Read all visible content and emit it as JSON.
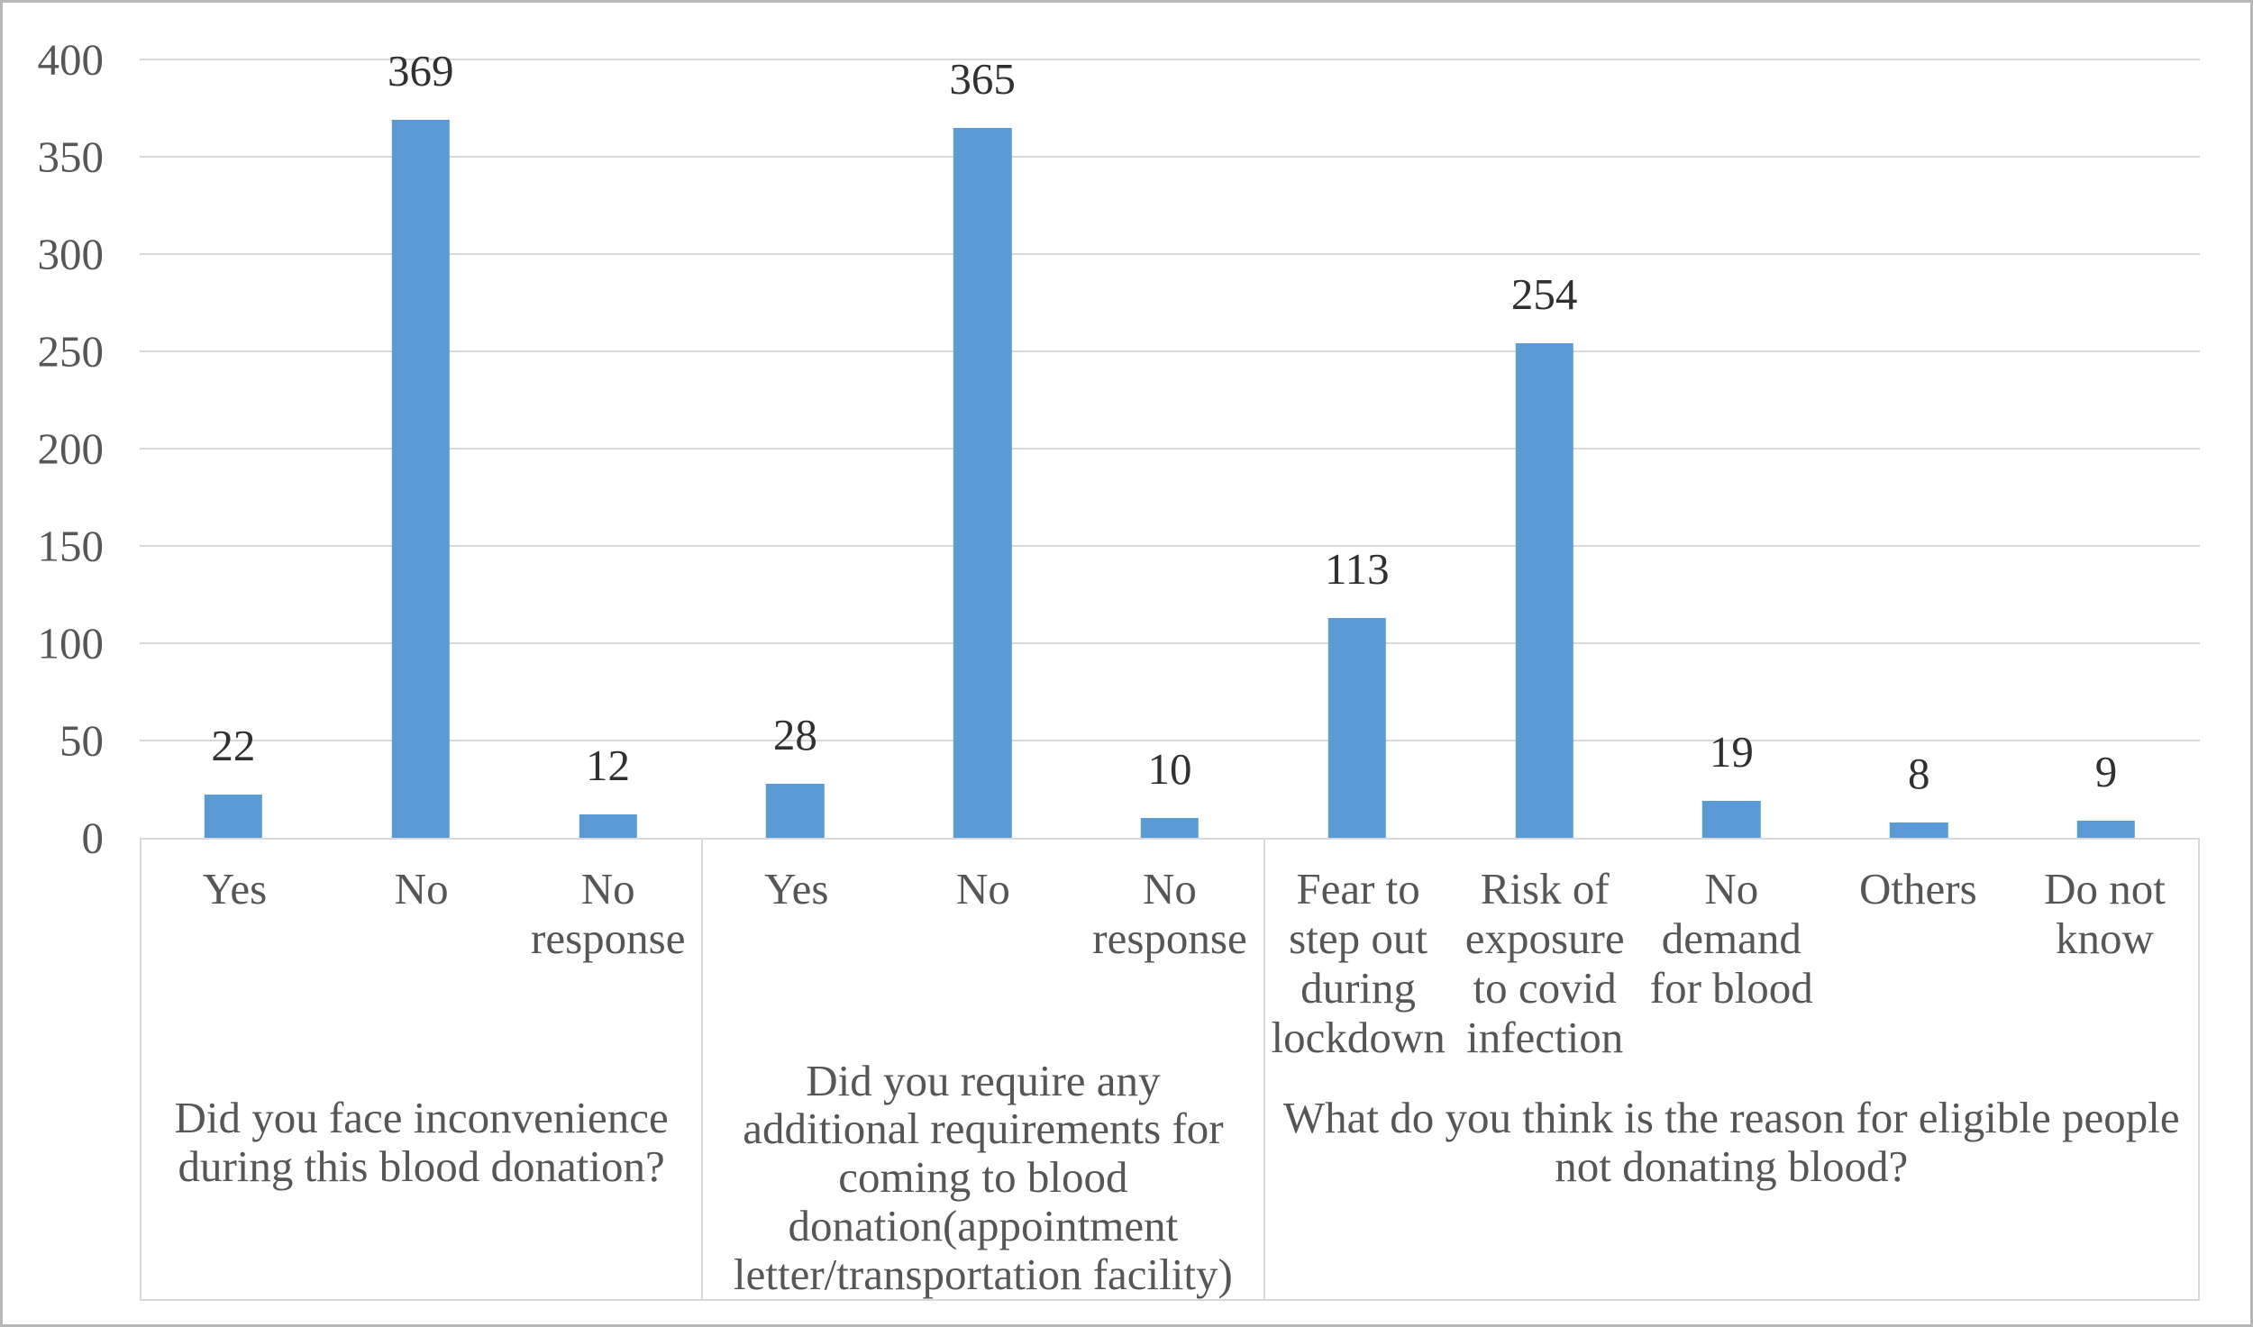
{
  "figure": {
    "background_color": "#ffffff",
    "frame_border_color": "#b7b7b7"
  },
  "chart_data": {
    "type": "bar",
    "title": "",
    "xlabel": "",
    "ylabel": "",
    "ylim": [
      0,
      400
    ],
    "ytick_step": 50,
    "yticks": [
      400,
      350,
      300,
      250,
      200,
      150,
      100,
      50,
      0
    ],
    "grid": true,
    "legend": false,
    "bar_color": "#5b9bd5",
    "gridline_color": "#d9d9d9",
    "axis_table_border_color": "#d9d9d9",
    "tick_text_color": "#565656",
    "value_label_color": "#303030",
    "groups": [
      {
        "question": "Did you face inconvenience during this blood donation?",
        "categories": [
          "Yes",
          "No",
          "No response"
        ],
        "values": [
          22,
          369,
          12
        ]
      },
      {
        "question": "Did you require any additional requirements for coming to blood donation(appointment letter/transportation facility)",
        "categories": [
          "Yes",
          "No",
          "No response"
        ],
        "values": [
          28,
          365,
          10
        ]
      },
      {
        "question": "What do you think is the reason for eligible people not donating blood?",
        "categories": [
          "Fear to step out during lockdown",
          "Risk of exposure to covid infection",
          "No demand for blood",
          "Others",
          "Do not know"
        ],
        "values": [
          113,
          254,
          19,
          8,
          9
        ]
      }
    ]
  }
}
